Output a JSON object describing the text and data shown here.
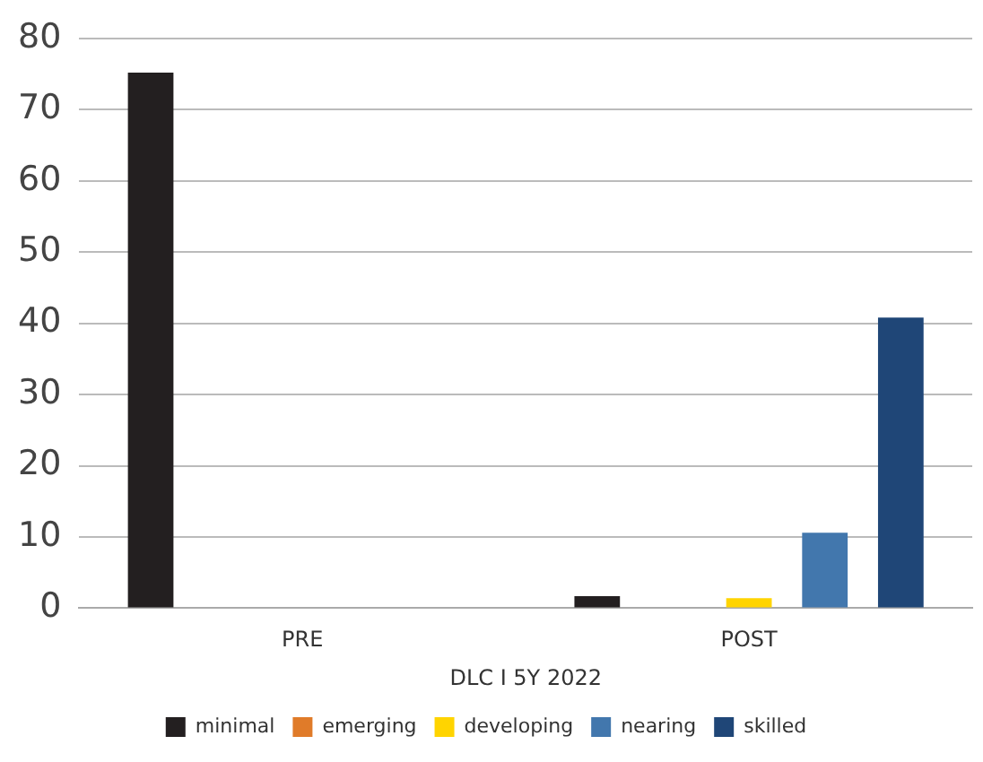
{
  "chart_data": {
    "type": "bar",
    "xlabel": "DLC I 5Y 2022",
    "categories": [
      "PRE",
      "POST"
    ],
    "series": [
      {
        "name": "minimal",
        "color": "#231f20",
        "values": [
          75.2,
          1.7
        ]
      },
      {
        "name": "emerging",
        "color": "#e07b29",
        "values": [
          0,
          0
        ]
      },
      {
        "name": "developing",
        "color": "#ffd400",
        "values": [
          0,
          1.4
        ]
      },
      {
        "name": "nearing",
        "color": "#4277ad",
        "values": [
          0,
          10.6
        ]
      },
      {
        "name": "skilled",
        "color": "#1f4677",
        "values": [
          0,
          40.8
        ]
      }
    ],
    "ylim": [
      0,
      80
    ],
    "yticks": [
      0,
      10,
      20,
      30,
      40,
      50,
      60,
      70,
      80
    ],
    "grid": "y",
    "legend": "bottom"
  }
}
